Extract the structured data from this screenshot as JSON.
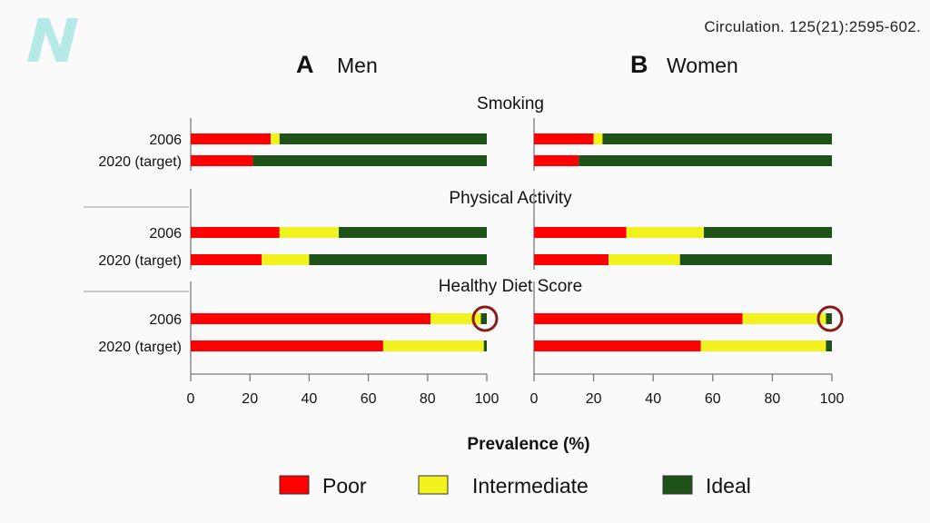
{
  "citation": "Circulation. 125(21):2595-602.",
  "logo": {
    "icon": "n-logo-icon",
    "text": "N",
    "color": "#9ee3e0"
  },
  "colors": {
    "poor": "#ff0000",
    "intermediate": "#f2f21e",
    "ideal": "#1d5219",
    "highlight": "#8b1a1a"
  },
  "chart_data": {
    "type": "bar",
    "orientation": "horizontal",
    "stacked": true,
    "xlabel": "Prevalence (%)",
    "xlim": [
      0,
      100
    ],
    "ticks": [
      0,
      20,
      40,
      60,
      80,
      100
    ],
    "tick_labels": [
      "0",
      "20",
      "40",
      "60",
      "80",
      "100"
    ],
    "legend": {
      "placement": "bottom",
      "entries": [
        {
          "key": "poor",
          "label": "Poor"
        },
        {
          "key": "intermediate",
          "label": "Intermediate"
        },
        {
          "key": "ideal",
          "label": "Ideal"
        }
      ]
    },
    "categories": [
      "2006",
      "2020 (target)"
    ],
    "panels": [
      {
        "letter": "A",
        "title": "Men",
        "groups": [
          {
            "title": "Smoking",
            "rows": [
              {
                "label": "2006",
                "poor": 27,
                "intermediate": 3,
                "ideal": 70
              },
              {
                "label": "2020 (target)",
                "poor": 21,
                "intermediate": 0,
                "ideal": 79
              }
            ]
          },
          {
            "title": "Physical Activity",
            "rows": [
              {
                "label": "2006",
                "poor": 30,
                "intermediate": 20,
                "ideal": 50
              },
              {
                "label": "2020 (target)",
                "poor": 24,
                "intermediate": 16,
                "ideal": 60
              }
            ]
          },
          {
            "title": "Healthy Diet Score",
            "rows": [
              {
                "label": "2006",
                "poor": 81,
                "intermediate": 17,
                "ideal": 2,
                "highlight": true
              },
              {
                "label": "2020 (target)",
                "poor": 65,
                "intermediate": 34,
                "ideal": 1
              }
            ]
          }
        ]
      },
      {
        "letter": "B",
        "title": "Women",
        "groups": [
          {
            "title": "",
            "rows": [
              {
                "label": "2006",
                "poor": 20,
                "intermediate": 3,
                "ideal": 77
              },
              {
                "label": "2020 (target)",
                "poor": 15,
                "intermediate": 0,
                "ideal": 85
              }
            ]
          },
          {
            "title": "",
            "rows": [
              {
                "label": "2006",
                "poor": 31,
                "intermediate": 26,
                "ideal": 43
              },
              {
                "label": "2020 (target)",
                "poor": 25,
                "intermediate": 24,
                "ideal": 51
              }
            ]
          },
          {
            "title": "",
            "rows": [
              {
                "label": "2006",
                "poor": 70,
                "intermediate": 28,
                "ideal": 2,
                "highlight": true
              },
              {
                "label": "2020 (target)",
                "poor": 56,
                "intermediate": 42,
                "ideal": 2
              }
            ]
          }
        ]
      }
    ]
  }
}
